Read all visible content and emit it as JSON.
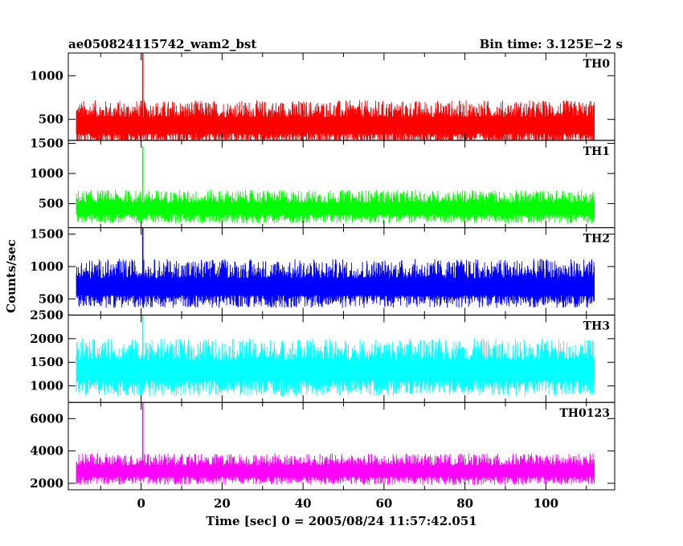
{
  "chart_data": {
    "type": "line",
    "title": "ae050824115742_wam2_bst",
    "bin_time_label": "Bin time: 3.125E−2 s",
    "xlabel": "Time [sec] 0 = 2005/08/24 11:57:42.051",
    "ylabel": "Counts/sec",
    "xlim": [
      -18,
      117
    ],
    "x_ticks": [
      0,
      20,
      40,
      60,
      80,
      100
    ],
    "x_tick_labels": [
      "0",
      "20",
      "40",
      "60",
      "80",
      "100"
    ],
    "data_x_range": [
      -16,
      112
    ],
    "bin_time": 0.03125,
    "panels": [
      {
        "name": "TH0",
        "color": "#ff0000",
        "ylim": [
          260,
          1260
        ],
        "yticks": [
          500,
          1000
        ],
        "ytick_labels": [
          "500",
          "1000"
        ],
        "baseline": 420,
        "noise_low": 230,
        "noise_high": 300,
        "spike": {
          "x": 0.4,
          "value": 1290
        }
      },
      {
        "name": "TH1",
        "color": "#00ff00",
        "ylim": [
          100,
          1550
        ],
        "yticks": [
          500,
          1000,
          1500
        ],
        "ytick_labels": [
          "500",
          "1000",
          "1500"
        ],
        "baseline": 400,
        "noise_low": 230,
        "noise_high": 330,
        "spike": {
          "x": 0.4,
          "value": 1450
        }
      },
      {
        "name": "TH2",
        "color": "#0000ff",
        "ylim": [
          250,
          1600
        ],
        "yticks": [
          500,
          1000,
          1500
        ],
        "ytick_labels": [
          "500",
          "1000",
          "1500"
        ],
        "baseline": 660,
        "noise_low": 300,
        "noise_high": 460,
        "spike": {
          "x": 0.4,
          "value": 1620
        }
      },
      {
        "name": "TH3",
        "color": "#00ffff",
        "ylim": [
          650,
          2500
        ],
        "yticks": [
          1000,
          1500,
          2000,
          2500
        ],
        "ytick_labels": [
          "1000",
          "1500",
          "2000",
          "2500"
        ],
        "baseline": 1300,
        "noise_low": 520,
        "noise_high": 700,
        "spike": {
          "x": 0.4,
          "value": 2500
        }
      },
      {
        "name": "TH0123",
        "color": "#ff00ff",
        "ylim": [
          1600,
          7000
        ],
        "yticks": [
          2000,
          4000,
          6000
        ],
        "ytick_labels": [
          "2000",
          "4000",
          "6000"
        ],
        "baseline": 2700,
        "noise_low": 800,
        "noise_high": 1150,
        "spike": {
          "x": 0.4,
          "value": 7000
        }
      }
    ]
  }
}
